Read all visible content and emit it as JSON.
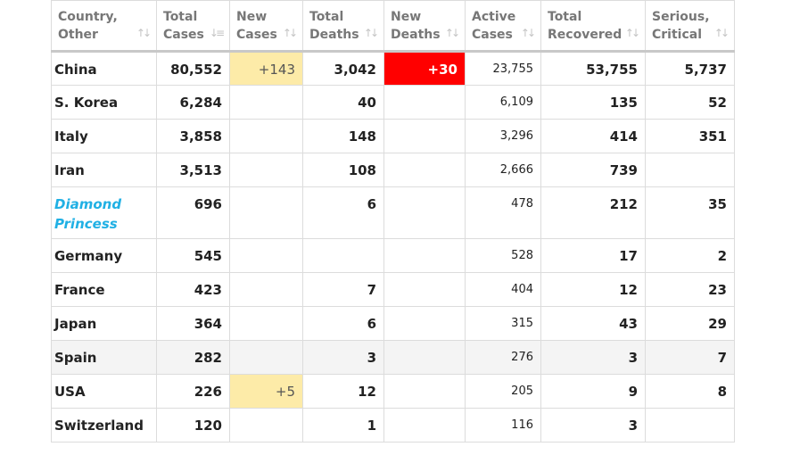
{
  "headers": [
    {
      "line1": "Country,",
      "line2": "Other",
      "sort": "↑↓"
    },
    {
      "line1": "Total",
      "line2": "Cases",
      "sort": "↓≡"
    },
    {
      "line1": "New",
      "line2": "Cases",
      "sort": "↑↓"
    },
    {
      "line1": "Total",
      "line2": "Deaths",
      "sort": "↑↓"
    },
    {
      "line1": "New",
      "line2": "Deaths",
      "sort": "↑↓"
    },
    {
      "line1": "Active",
      "line2": "Cases",
      "sort": "↑↓"
    },
    {
      "line1": "Total",
      "line2": "Recovered",
      "sort": "↑↓"
    },
    {
      "line1": "Serious,",
      "line2": "Critical",
      "sort": "↑↓"
    }
  ],
  "rows": [
    {
      "country": "China",
      "total_cases": "80,552",
      "new_cases": "+143",
      "total_deaths": "3,042",
      "new_deaths": "+30",
      "active_cases": "23,755",
      "total_recovered": "53,755",
      "serious_critical": "5,737"
    },
    {
      "country": "S. Korea",
      "total_cases": "6,284",
      "new_cases": "",
      "total_deaths": "40",
      "new_deaths": "",
      "active_cases": "6,109",
      "total_recovered": "135",
      "serious_critical": "52"
    },
    {
      "country": "Italy",
      "total_cases": "3,858",
      "new_cases": "",
      "total_deaths": "148",
      "new_deaths": "",
      "active_cases": "3,296",
      "total_recovered": "414",
      "serious_critical": "351"
    },
    {
      "country": "Iran",
      "total_cases": "3,513",
      "new_cases": "",
      "total_deaths": "108",
      "new_deaths": "",
      "active_cases": "2,666",
      "total_recovered": "739",
      "serious_critical": ""
    },
    {
      "country": "Diamond Princess",
      "total_cases": "696",
      "new_cases": "",
      "total_deaths": "6",
      "new_deaths": "",
      "active_cases": "478",
      "total_recovered": "212",
      "serious_critical": "35"
    },
    {
      "country": "Germany",
      "total_cases": "545",
      "new_cases": "",
      "total_deaths": "",
      "new_deaths": "",
      "active_cases": "528",
      "total_recovered": "17",
      "serious_critical": "2"
    },
    {
      "country": "France",
      "total_cases": "423",
      "new_cases": "",
      "total_deaths": "7",
      "new_deaths": "",
      "active_cases": "404",
      "total_recovered": "12",
      "serious_critical": "23"
    },
    {
      "country": "Japan",
      "total_cases": "364",
      "new_cases": "",
      "total_deaths": "6",
      "new_deaths": "",
      "active_cases": "315",
      "total_recovered": "43",
      "serious_critical": "29"
    },
    {
      "country": "Spain",
      "total_cases": "282",
      "new_cases": "",
      "total_deaths": "3",
      "new_deaths": "",
      "active_cases": "276",
      "total_recovered": "3",
      "serious_critical": "7"
    },
    {
      "country": "USA",
      "total_cases": "226",
      "new_cases": "+5",
      "total_deaths": "12",
      "new_deaths": "",
      "active_cases": "205",
      "total_recovered": "9",
      "serious_critical": "8"
    },
    {
      "country": "Switzerland",
      "total_cases": "120",
      "new_cases": "",
      "total_deaths": "1",
      "new_deaths": "",
      "active_cases": "116",
      "total_recovered": "3",
      "serious_critical": ""
    }
  ],
  "colors": {
    "new_cases_highlight": "#fdeba8",
    "new_deaths_highlight": "#ff0000",
    "link_country": "#20b0e4",
    "header_text": "#777777"
  }
}
